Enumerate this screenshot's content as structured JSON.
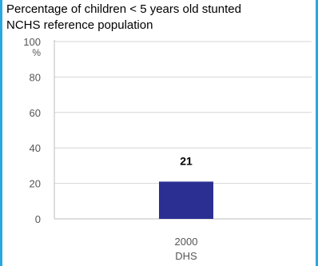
{
  "header": {
    "title": "Percentage of children < 5 years old stunted",
    "subtitle": "NCHS reference population"
  },
  "chart_data": {
    "type": "bar",
    "title": "Percentage of children < 5 years old stunted",
    "subtitle": "NCHS reference population",
    "ylabel": "%",
    "xlabel": "",
    "ylim": [
      0,
      100
    ],
    "yticks": [
      0,
      20,
      40,
      60,
      80,
      100
    ],
    "grid": true,
    "legend": "none",
    "categories": [
      [
        "2000",
        "DHS"
      ]
    ],
    "series": [
      {
        "values": [
          21
        ],
        "color": "#2b2f91"
      }
    ],
    "data_labels": [
      "21"
    ]
  }
}
